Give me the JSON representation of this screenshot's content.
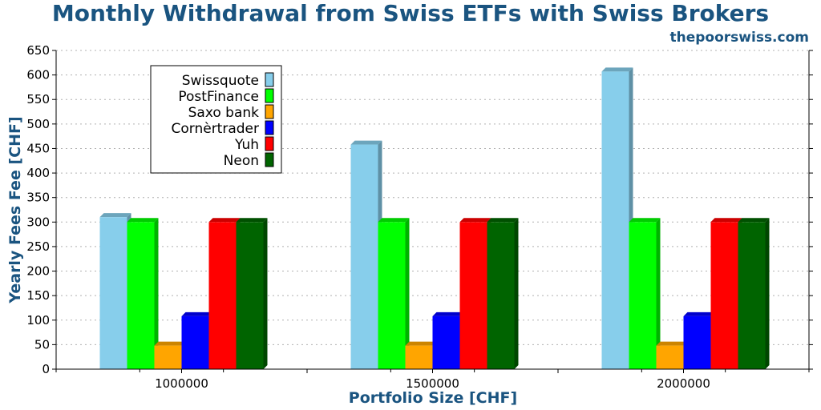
{
  "colors": {
    "title": "#1a5480",
    "axis": "#000000",
    "grid": "#b0b0b0"
  },
  "chart_data": {
    "type": "bar",
    "title": "Monthly Withdrawal from Swiss ETFs with Swiss Brokers",
    "subtitle": "thepoorswiss.com",
    "xlabel": "Portfolio Size [CHF]",
    "ylabel": "Yearly Fees Fee [CHF]",
    "ylim": [
      0,
      650
    ],
    "yticks": [
      0,
      50,
      100,
      150,
      200,
      250,
      300,
      350,
      400,
      450,
      500,
      550,
      600,
      650
    ],
    "grid": true,
    "legend_position": "top-left",
    "categories": [
      "1000000",
      "1500000",
      "2000000"
    ],
    "series": [
      {
        "name": "Swissquote",
        "color": "#87ceeb",
        "values": [
          310,
          458,
          607
        ]
      },
      {
        "name": "PostFinance",
        "color": "#00ff00",
        "values": [
          300,
          300,
          300
        ]
      },
      {
        "name": "Saxo bank",
        "color": "#ffa500",
        "values": [
          48,
          48,
          48
        ]
      },
      {
        "name": "Cornèrtrader",
        "color": "#0000ff",
        "values": [
          108,
          108,
          108
        ]
      },
      {
        "name": "Yuh",
        "color": "#ff0000",
        "values": [
          300,
          300,
          300
        ]
      },
      {
        "name": "Neon",
        "color": "#006400",
        "values": [
          300,
          300,
          300
        ]
      }
    ]
  }
}
